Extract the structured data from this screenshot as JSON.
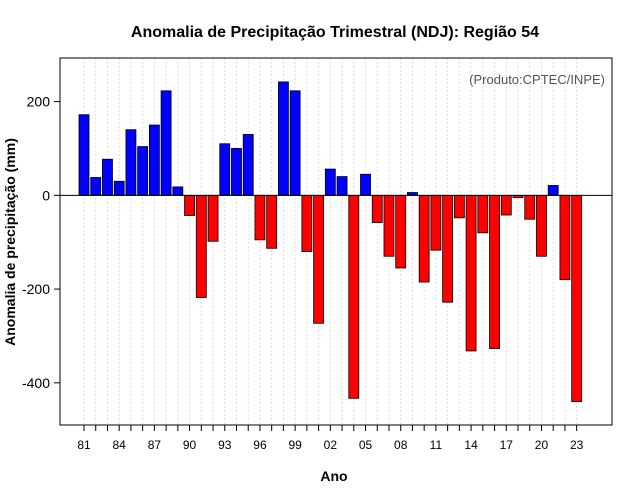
{
  "chart_data": {
    "type": "bar",
    "title": "Anomalia de Precipitação Trimestral (NDJ): Região 54",
    "xlabel": "Ano",
    "ylabel": "Anomalia de precipitação (mm)",
    "annotation": "(Produto:CPTEC/INPE)",
    "ylim": [
      -490,
      293
    ],
    "yticks": [
      -400,
      -200,
      0,
      200
    ],
    "grid": "vertical dotted",
    "positive_color": "#0000ff",
    "negative_color": "#ff0000",
    "categories": [
      "81",
      "82",
      "83",
      "84",
      "85",
      "86",
      "87",
      "88",
      "89",
      "90",
      "91",
      "92",
      "93",
      "94",
      "95",
      "96",
      "97",
      "98",
      "99",
      "00",
      "01",
      "02",
      "03",
      "04",
      "05",
      "06",
      "07",
      "08",
      "09",
      "10",
      "11",
      "12",
      "13",
      "14",
      "15",
      "16",
      "17",
      "18",
      "19",
      "20",
      "21",
      "22",
      "23"
    ],
    "xtick_labels": [
      "81",
      "84",
      "87",
      "90",
      "93",
      "96",
      "99",
      "02",
      "05",
      "08",
      "11",
      "14",
      "17",
      "20",
      "23"
    ],
    "values": [
      172,
      38,
      77,
      30,
      140,
      104,
      150,
      223,
      18,
      -43,
      -218,
      -98,
      110,
      100,
      130,
      -95,
      -113,
      242,
      223,
      -120,
      -273,
      56,
      40,
      -433,
      45,
      -58,
      -130,
      -155,
      6,
      -185,
      -117,
      -228,
      -48,
      -332,
      -80,
      -327,
      -42,
      -5,
      -51,
      -130,
      21,
      -180,
      -440
    ]
  }
}
